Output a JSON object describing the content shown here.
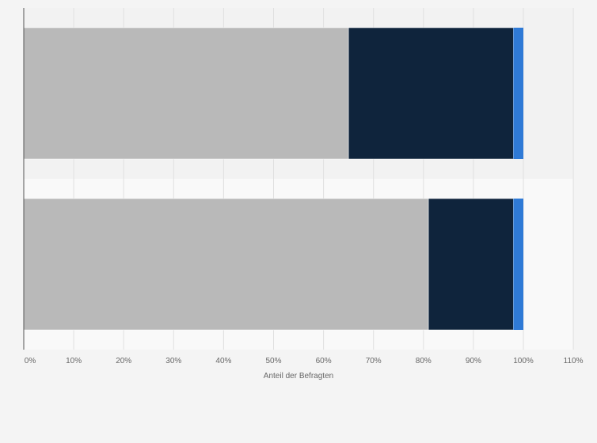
{
  "chart_data": {
    "type": "bar",
    "orientation": "horizontal",
    "stacked": true,
    "title": "",
    "xlabel": "Anteil der Befragten",
    "ylabel": "",
    "xlim": [
      0,
      110
    ],
    "xticks": [
      0,
      10,
      20,
      30,
      40,
      50,
      60,
      70,
      80,
      90,
      100,
      110
    ],
    "x_tick_labels": [
      "0%",
      "10%",
      "20%",
      "30%",
      "40%",
      "50%",
      "60%",
      "70%",
      "80%",
      "90%",
      "100%",
      "110%"
    ],
    "categories": [
      "",
      ""
    ],
    "series": [
      {
        "color": "#b9b9b9",
        "values": [
          65,
          81
        ]
      },
      {
        "color": "#0f243c",
        "values": [
          33,
          17
        ]
      },
      {
        "color": "#2f7ad6",
        "values": [
          2,
          2
        ]
      }
    ],
    "grid": true,
    "legend": "none"
  }
}
